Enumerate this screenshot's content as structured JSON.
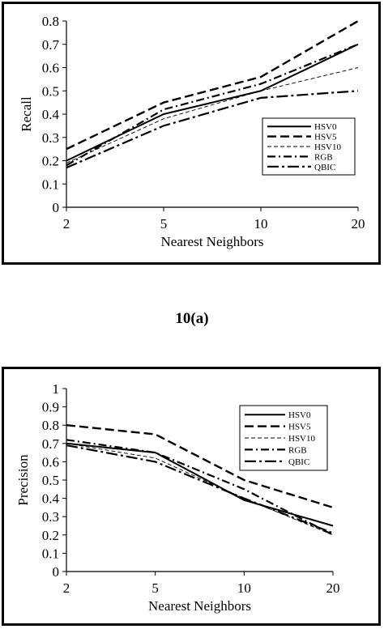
{
  "caption": "10(a)",
  "chart_data": [
    {
      "type": "line",
      "title": "",
      "xlabel": "Nearest Neighbors",
      "ylabel": "Recall",
      "x": [
        2,
        5,
        10,
        20
      ],
      "y_ticks": [
        "0",
        "0.1",
        "0.2",
        "0.3",
        "0.4",
        "0.5",
        "0.6",
        "0.7",
        "0.8"
      ],
      "ylim": [
        0,
        0.8
      ],
      "grid": false,
      "legend_position": "right",
      "series": [
        {
          "name": "HSV0",
          "values": [
            0.2,
            0.4,
            0.5,
            0.7
          ],
          "style": "solid"
        },
        {
          "name": "HSV5",
          "values": [
            0.25,
            0.45,
            0.56,
            0.8
          ],
          "style": "dash"
        },
        {
          "name": "HSV10",
          "values": [
            0.19,
            0.38,
            0.5,
            0.6
          ],
          "style": "thin-dash"
        },
        {
          "name": "RGB",
          "values": [
            0.18,
            0.42,
            0.53,
            0.7
          ],
          "style": "dashdot"
        },
        {
          "name": "QBIC",
          "values": [
            0.17,
            0.35,
            0.47,
            0.5
          ],
          "style": "dashdot-long"
        }
      ]
    },
    {
      "type": "line",
      "title": "",
      "xlabel": "Nearest Neighbors",
      "ylabel": "Precision",
      "x": [
        2,
        5,
        10,
        20
      ],
      "y_ticks": [
        "0",
        "0.1",
        "0.2",
        "0.3",
        "0.4",
        "0.5",
        "0.6",
        "0.7",
        "0.8",
        "0.9",
        "1"
      ],
      "ylim": [
        0,
        1
      ],
      "grid": false,
      "legend_position": "top-right",
      "series": [
        {
          "name": "HSV0",
          "values": [
            0.7,
            0.65,
            0.39,
            0.25
          ],
          "style": "solid"
        },
        {
          "name": "HSV5",
          "values": [
            0.8,
            0.75,
            0.5,
            0.35
          ],
          "style": "dash"
        },
        {
          "name": "HSV10",
          "values": [
            0.7,
            0.62,
            0.4,
            0.2
          ],
          "style": "thin-dash"
        },
        {
          "name": "RGB",
          "values": [
            0.72,
            0.65,
            0.45,
            0.2
          ],
          "style": "dashdot"
        },
        {
          "name": "QBIC",
          "values": [
            0.69,
            0.6,
            0.4,
            0.21
          ],
          "style": "dashdot-long"
        }
      ]
    }
  ]
}
